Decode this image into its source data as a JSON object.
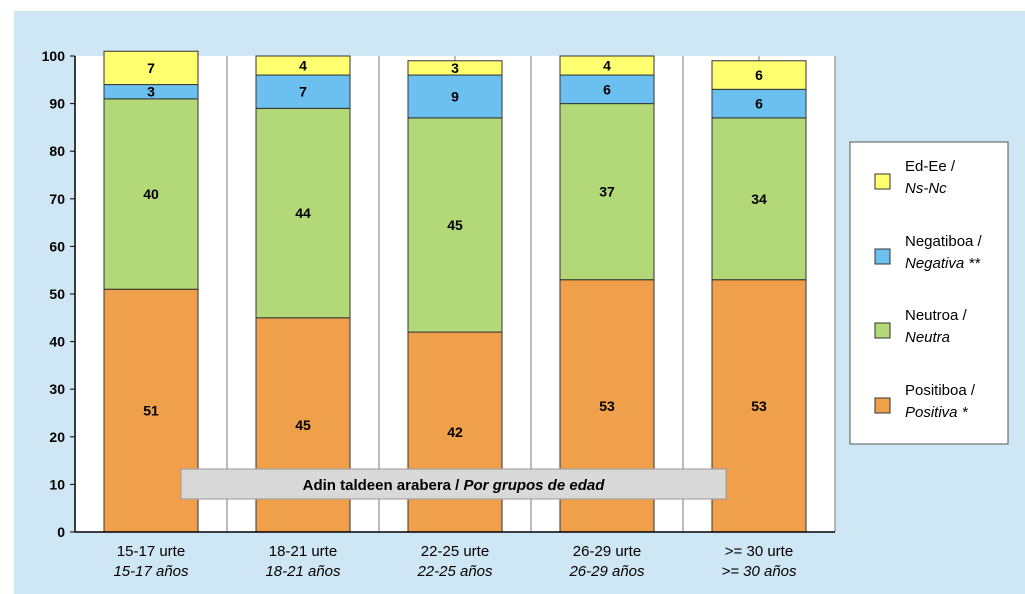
{
  "chart_data": {
    "type": "bar",
    "stacked": true,
    "ylim": [
      0,
      100
    ],
    "yticks": [
      0,
      10,
      20,
      30,
      40,
      50,
      60,
      70,
      80,
      90,
      100
    ],
    "grid": true,
    "legend_position": "right",
    "annotation": {
      "main": "Adin taldeen arabera / ",
      "italic": "Por grupos de edad"
    },
    "categories": [
      {
        "line1": "15-17 urte",
        "line2": "15-17 años"
      },
      {
        "line1": "18-21 urte",
        "line2": "18-21 años"
      },
      {
        "line1": "22-25 urte",
        "line2": "22-25 años"
      },
      {
        "line1": "26-29 urte",
        "line2": "26-29 años"
      },
      {
        "line1": ">= 30 urte",
        "line2": ">= 30 años"
      }
    ],
    "series": [
      {
        "name": "Positiboa / Positiva *",
        "line1": "Positiboa /",
        "line2": "Positiva *",
        "color": "#f0a04b",
        "values": [
          51,
          45,
          42,
          53,
          53
        ]
      },
      {
        "name": "Neutroa / Neutra",
        "line1": "Neutroa /",
        "line2": "Neutra",
        "color": "#b3d878",
        "values": [
          40,
          44,
          45,
          37,
          34
        ]
      },
      {
        "name": "Negatiboa / Negativa **",
        "line1": "Negatiboa /",
        "line2": "Negativa **",
        "color": "#6cc0f0",
        "values": [
          3,
          7,
          9,
          6,
          6
        ]
      },
      {
        "name": "Ed-Ee / Ns-Nc",
        "line1": "Ed-Ee /",
        "line2": "Ns-Nc",
        "color": "#ffff70",
        "values": [
          7,
          4,
          3,
          4,
          6
        ]
      }
    ]
  }
}
